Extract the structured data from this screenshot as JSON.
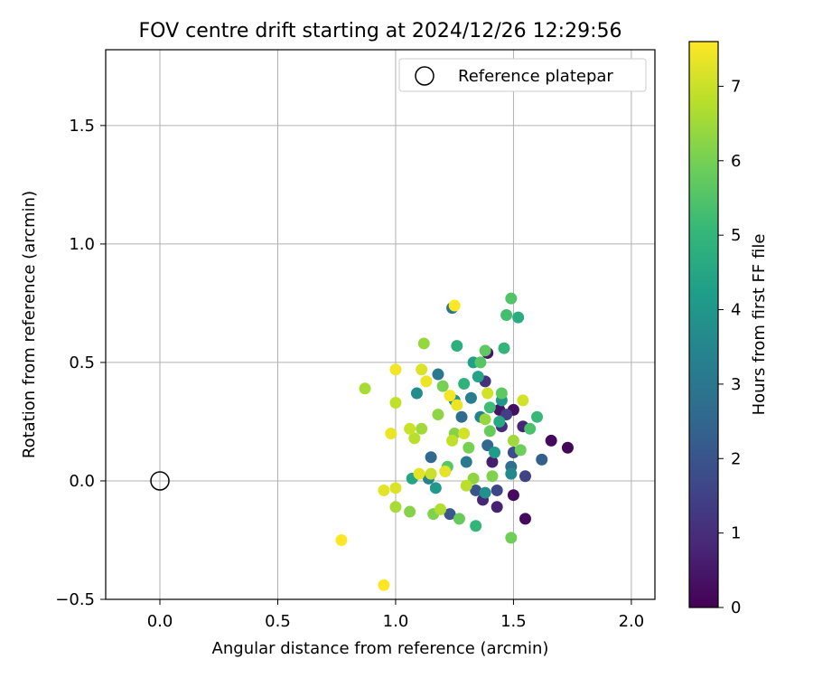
{
  "chart_data": {
    "type": "scatter",
    "title": "FOV centre drift starting at 2024/12/26 12:29:56",
    "xlabel": "Angular distance from reference (arcmin)",
    "ylabel": "Rotation from reference (arcmin)",
    "xlim": [
      -0.23,
      2.1
    ],
    "ylim": [
      -0.5,
      1.82
    ],
    "xticks": [
      0.0,
      0.5,
      1.0,
      1.5,
      2.0
    ],
    "xtick_labels": [
      "0.0",
      "0.5",
      "1.0",
      "1.5",
      "2.0"
    ],
    "yticks": [
      -0.5,
      0.0,
      0.5,
      1.0,
      1.5
    ],
    "ytick_labels": [
      "−0.5",
      "0.0",
      "0.5",
      "1.0",
      "1.5"
    ],
    "grid": true,
    "legend": {
      "placement": "upper right",
      "entries": [
        {
          "label": "Reference platepar",
          "marker": "open-circle"
        }
      ]
    },
    "reference_point": {
      "x": 0.0,
      "y": 0.0
    },
    "colorbar": {
      "label": "Hours from first FF file",
      "colormap": "viridis",
      "range": [
        0,
        7.6
      ],
      "ticks": [
        0,
        1,
        2,
        3,
        4,
        5,
        6,
        7
      ],
      "tick_labels": [
        "0",
        "1",
        "2",
        "3",
        "4",
        "5",
        "6",
        "7"
      ]
    },
    "colormap_stops": [
      "#440154",
      "#482878",
      "#3e4989",
      "#31688e",
      "#26828e",
      "#1f9e89",
      "#35b779",
      "#6ece58",
      "#b5de2b",
      "#fde725"
    ],
    "points": [
      [
        1.73,
        0.14,
        0.1
      ],
      [
        1.66,
        0.17,
        0.2
      ],
      [
        1.55,
        -0.16,
        0.2
      ],
      [
        1.5,
        -0.06,
        0.2
      ],
      [
        1.5,
        0.3,
        0.3
      ],
      [
        1.39,
        0.54,
        0.4
      ],
      [
        1.44,
        0.3,
        0.4
      ],
      [
        1.41,
        0.08,
        0.6
      ],
      [
        1.43,
        -0.11,
        0.7
      ],
      [
        1.37,
        -0.08,
        0.8
      ],
      [
        1.54,
        0.23,
        0.8
      ],
      [
        1.45,
        0.23,
        1.0
      ],
      [
        1.38,
        0.42,
        1.1
      ],
      [
        1.47,
        0.28,
        1.4
      ],
      [
        1.55,
        0.02,
        1.5
      ],
      [
        1.43,
        -0.04,
        1.6
      ],
      [
        1.5,
        0.12,
        1.8
      ],
      [
        1.34,
        -0.04,
        2.0
      ],
      [
        1.23,
        -0.14,
        2.1
      ],
      [
        1.62,
        0.09,
        2.3
      ],
      [
        1.39,
        0.15,
        2.5
      ],
      [
        1.15,
        0.1,
        2.6
      ],
      [
        1.28,
        0.27,
        2.7
      ],
      [
        1.49,
        0.06,
        2.8
      ],
      [
        1.24,
        0.73,
        3.0
      ],
      [
        1.18,
        0.45,
        3.1
      ],
      [
        1.3,
        0.08,
        3.1
      ],
      [
        1.32,
        0.35,
        3.2
      ],
      [
        1.14,
        0.01,
        3.3
      ],
      [
        1.36,
        0.27,
        3.4
      ],
      [
        1.49,
        0.03,
        3.6
      ],
      [
        1.09,
        0.37,
        3.7
      ],
      [
        1.38,
        -0.05,
        3.8
      ],
      [
        1.25,
        0.34,
        3.9
      ],
      [
        1.45,
        0.34,
        4.0
      ],
      [
        1.17,
        -0.03,
        4.1
      ],
      [
        1.42,
        0.12,
        4.2
      ],
      [
        1.33,
        0.5,
        4.3
      ],
      [
        1.35,
        0.44,
        4.4
      ],
      [
        1.07,
        0.01,
        4.5
      ],
      [
        1.44,
        0.25,
        4.6
      ],
      [
        1.52,
        0.69,
        4.7
      ],
      [
        1.26,
        0.57,
        4.8
      ],
      [
        1.29,
        0.41,
        4.9
      ],
      [
        1.34,
        -0.19,
        5.0
      ],
      [
        1.46,
        0.56,
        5.0
      ],
      [
        1.6,
        0.27,
        5.1
      ],
      [
        1.4,
        0.31,
        5.2
      ],
      [
        1.47,
        0.7,
        5.3
      ],
      [
        1.57,
        0.22,
        5.4
      ],
      [
        1.49,
        0.77,
        5.5
      ],
      [
        1.36,
        0.5,
        5.6
      ],
      [
        1.22,
        0.06,
        5.6
      ],
      [
        1.45,
        0.37,
        5.7
      ],
      [
        1.38,
        0.55,
        5.7
      ],
      [
        1.27,
        -0.16,
        5.8
      ],
      [
        1.4,
        0.21,
        5.8
      ],
      [
        1.53,
        0.13,
        5.9
      ],
      [
        1.49,
        -0.24,
        5.9
      ],
      [
        1.2,
        0.4,
        6.0
      ],
      [
        1.31,
        0.14,
        6.0
      ],
      [
        1.16,
        -0.14,
        6.1
      ],
      [
        1.41,
        0.02,
        6.1
      ],
      [
        1.25,
        0.2,
        6.2
      ],
      [
        1.06,
        -0.13,
        6.2
      ],
      [
        1.33,
        0.01,
        6.3
      ],
      [
        1.18,
        0.28,
        6.3
      ],
      [
        1.38,
        0.26,
        6.4
      ],
      [
        1.12,
        0.58,
        6.4
      ],
      [
        1.11,
        0.22,
        6.5
      ],
      [
        1.5,
        0.17,
        6.5
      ],
      [
        1.0,
        -0.11,
        6.6
      ],
      [
        0.87,
        0.39,
        6.6
      ],
      [
        1.19,
        -0.12,
        6.7
      ],
      [
        1.08,
        0.18,
        6.8
      ],
      [
        1.3,
        -0.02,
        6.8
      ],
      [
        1.24,
        0.17,
        6.9
      ],
      [
        1.0,
        0.33,
        6.9
      ],
      [
        1.06,
        0.22,
        7.0
      ],
      [
        1.15,
        0.03,
        7.0
      ],
      [
        1.39,
        0.37,
        7.1
      ],
      [
        1.54,
        0.34,
        7.1
      ],
      [
        1.29,
        0.2,
        7.1
      ],
      [
        1.11,
        0.47,
        7.2
      ],
      [
        1.0,
        -0.03,
        7.2
      ],
      [
        1.21,
        0.04,
        7.3
      ],
      [
        1.1,
        0.03,
        7.3
      ],
      [
        0.95,
        -0.04,
        7.3
      ],
      [
        1.26,
        0.32,
        7.4
      ],
      [
        0.98,
        0.2,
        7.4
      ],
      [
        1.13,
        0.42,
        7.4
      ],
      [
        1.0,
        0.47,
        7.5
      ],
      [
        1.23,
        0.36,
        7.5
      ],
      [
        1.25,
        0.74,
        7.6
      ],
      [
        0.77,
        -0.25,
        7.6
      ],
      [
        0.95,
        -0.44,
        7.6
      ]
    ]
  }
}
